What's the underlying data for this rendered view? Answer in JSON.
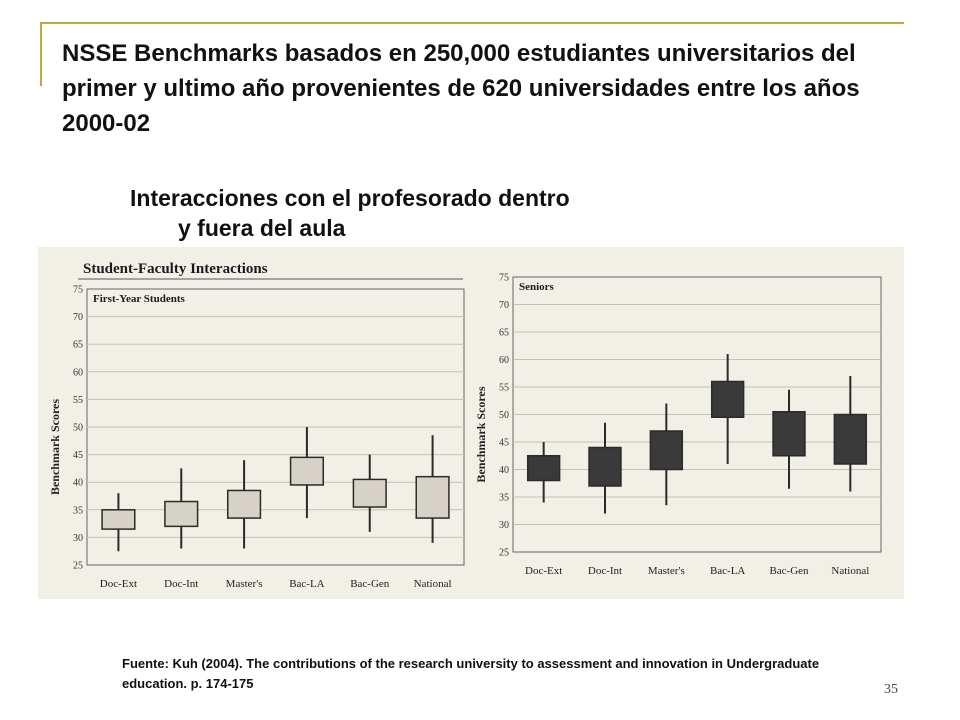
{
  "slide": {
    "title": "NSSE Benchmarks basados en 250,000 estudiantes universitarios del primer y ultimo año provenientes de 620 universidades entre los años 2000-02",
    "subtitle_line1": "Interacciones con el profesorado dentro",
    "subtitle_line2": "y fuera del aula",
    "source": "Fuente: Kuh (2004). The contributions of the research university to assessment and innovation in Undergraduate education. p. 174-175",
    "page_number": "35"
  },
  "chart_data": [
    {
      "type": "box",
      "title": "Student-Faculty Interactions",
      "panel_label": "First-Year Students",
      "ylabel": "Benchmark Scores",
      "ylim": [
        25,
        75
      ],
      "yticks": [
        25,
        30,
        35,
        40,
        45,
        50,
        55,
        60,
        65,
        70,
        75
      ],
      "categories": [
        "Doc-Ext",
        "Doc-Int",
        "Master's",
        "Bac-LA",
        "Bac-Gen",
        "National"
      ],
      "series": [
        {
          "whisker_low": 27.5,
          "q1": 31.5,
          "q3": 35.0,
          "whisker_high": 38.0
        },
        {
          "whisker_low": 28.0,
          "q1": 32.0,
          "q3": 36.5,
          "whisker_high": 42.5
        },
        {
          "whisker_low": 28.0,
          "q1": 33.5,
          "q3": 38.5,
          "whisker_high": 44.0
        },
        {
          "whisker_low": 33.5,
          "q1": 39.5,
          "q3": 44.5,
          "whisker_high": 50.0
        },
        {
          "whisker_low": 31.0,
          "q1": 35.5,
          "q3": 40.5,
          "whisker_high": 45.0
        },
        {
          "whisker_low": 29.0,
          "q1": 33.5,
          "q3": 41.0,
          "whisker_high": 48.5
        }
      ],
      "box_color": "#d6d2c8",
      "grid": true
    },
    {
      "type": "box",
      "panel_label": "Seniors",
      "ylabel": "Benchmark Scores",
      "ylim": [
        25,
        75
      ],
      "yticks": [
        25,
        30,
        35,
        40,
        45,
        50,
        55,
        60,
        65,
        70,
        75
      ],
      "categories": [
        "Doc-Ext",
        "Doc-Int",
        "Master's",
        "Bac-LA",
        "Bac-Gen",
        "National"
      ],
      "series": [
        {
          "whisker_low": 34.0,
          "q1": 38.0,
          "q3": 42.5,
          "whisker_high": 45.0
        },
        {
          "whisker_low": 32.0,
          "q1": 37.0,
          "q3": 44.0,
          "whisker_high": 48.5
        },
        {
          "whisker_low": 33.5,
          "q1": 40.0,
          "q3": 47.0,
          "whisker_high": 52.0
        },
        {
          "whisker_low": 41.0,
          "q1": 49.5,
          "q3": 56.0,
          "whisker_high": 61.0
        },
        {
          "whisker_low": 36.5,
          "q1": 42.5,
          "q3": 50.5,
          "whisker_high": 54.5
        },
        {
          "whisker_low": 36.0,
          "q1": 41.0,
          "q3": 50.0,
          "whisker_high": 57.0
        }
      ],
      "box_color": "#3a3a3a",
      "grid": true
    }
  ]
}
